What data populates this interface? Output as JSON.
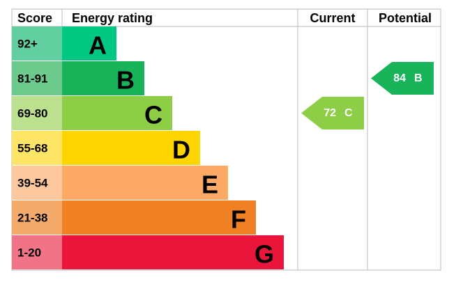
{
  "header": {
    "score": "Score",
    "rating": "Energy rating",
    "current": "Current",
    "potential": "Potential"
  },
  "bands": [
    {
      "score": "92+",
      "letter": "A",
      "color": "#00c781",
      "score_color": "#62cfa1"
    },
    {
      "score": "81-91",
      "letter": "B",
      "color": "#19b459",
      "score_color": "#6dca8d"
    },
    {
      "score": "69-80",
      "letter": "C",
      "color": "#8dce46",
      "score_color": "#bbe08e"
    },
    {
      "score": "55-68",
      "letter": "D",
      "color": "#ffd500",
      "score_color": "#ffe565"
    },
    {
      "score": "39-54",
      "letter": "E",
      "color": "#fcaa65",
      "score_color": "#fdc89d"
    },
    {
      "score": "21-38",
      "letter": "F",
      "color": "#ef8023",
      "score_color": "#f4aa6b"
    },
    {
      "score": "1-20",
      "letter": "G",
      "color": "#e9153b",
      "score_color": "#f07387"
    }
  ],
  "current": {
    "value": 72,
    "band": "C"
  },
  "potential": {
    "value": 84,
    "band": "B"
  }
}
